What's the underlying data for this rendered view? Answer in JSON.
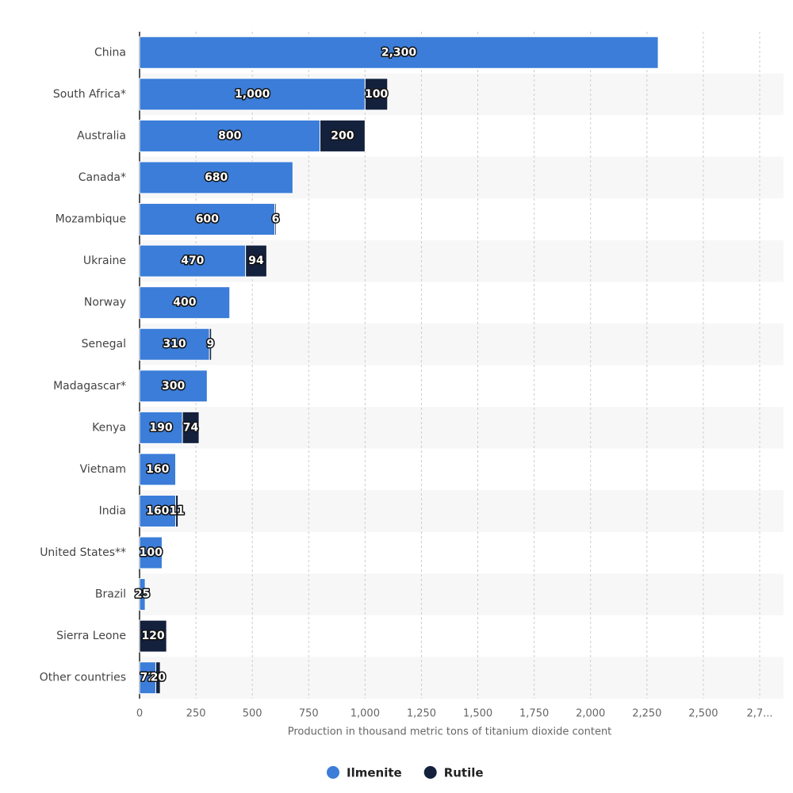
{
  "chart_data": {
    "type": "stacked-bar-horizontal",
    "xlabel": "Production in thousand metric tons of titanium dioxide content",
    "categories": [
      "China",
      "South Africa*",
      "Australia",
      "Canada*",
      "Mozambique",
      "Ukraine",
      "Norway",
      "Senegal",
      "Madagascar*",
      "Kenya",
      "Vietnam",
      "India",
      "United States**",
      "Brazil",
      "Sierra Leone",
      "Other countries"
    ],
    "series": [
      {
        "name": "Ilmenite",
        "color": "#3b7dd8",
        "values": [
          2300,
          1000,
          800,
          680,
          600,
          470,
          400,
          310,
          300,
          190,
          160,
          160,
          100,
          25,
          null,
          72
        ],
        "value_labels": [
          "2,300",
          "1,000",
          "800",
          "680",
          "600",
          "470",
          "400",
          "310",
          "300",
          "190",
          "160",
          "160",
          "100",
          "25",
          null,
          "72"
        ]
      },
      {
        "name": "Rutile",
        "color": "#14213d",
        "values": [
          null,
          100,
          200,
          null,
          6,
          94,
          null,
          9,
          null,
          74,
          null,
          11,
          null,
          null,
          120,
          20
        ],
        "value_labels": [
          null,
          "100",
          "200",
          null,
          "6",
          "94",
          null,
          "9",
          null,
          "74",
          null,
          "11",
          null,
          null,
          "120",
          "20"
        ]
      }
    ],
    "xlim": [
      0,
      2750
    ],
    "xticks": [
      0,
      250,
      500,
      750,
      {
        "value": 1000,
        "label": "1,000"
      },
      {
        "value": 1250,
        "label": "1,250"
      },
      {
        "value": 1500,
        "label": "1,500"
      },
      {
        "value": 1750,
        "label": "1,750"
      },
      {
        "value": 2000,
        "label": "2,000"
      },
      {
        "value": 2250,
        "label": "2,250"
      },
      {
        "value": 2500,
        "label": "2,500"
      },
      {
        "value": 2750,
        "label": "2,7..."
      }
    ],
    "grid": true,
    "legend": "bottom"
  }
}
